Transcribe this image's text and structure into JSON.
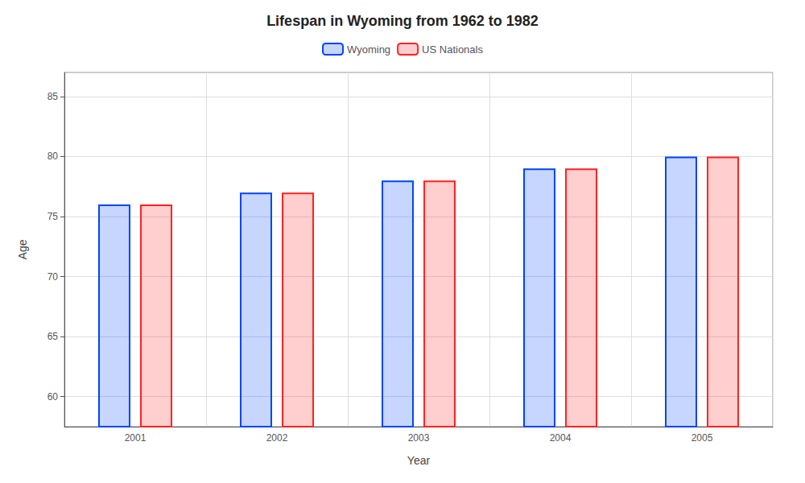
{
  "chart_data": {
    "type": "bar",
    "title": "Lifespan in Wyoming from 1962 to 1982",
    "xlabel": "Year",
    "ylabel": "Age",
    "categories": [
      "2001",
      "2002",
      "2003",
      "2004",
      "2005"
    ],
    "series": [
      {
        "name": "Wyoming",
        "color": "#0044ff",
        "values": [
          76,
          77,
          78,
          79,
          80
        ]
      },
      {
        "name": "US Nationals",
        "color": "#ff2222",
        "values": [
          76,
          77,
          78,
          79,
          80
        ]
      }
    ],
    "ylim": [
      57.5,
      87
    ],
    "yticks": [
      60,
      65,
      70,
      75,
      80,
      85
    ],
    "grid": true,
    "legend": "top"
  }
}
